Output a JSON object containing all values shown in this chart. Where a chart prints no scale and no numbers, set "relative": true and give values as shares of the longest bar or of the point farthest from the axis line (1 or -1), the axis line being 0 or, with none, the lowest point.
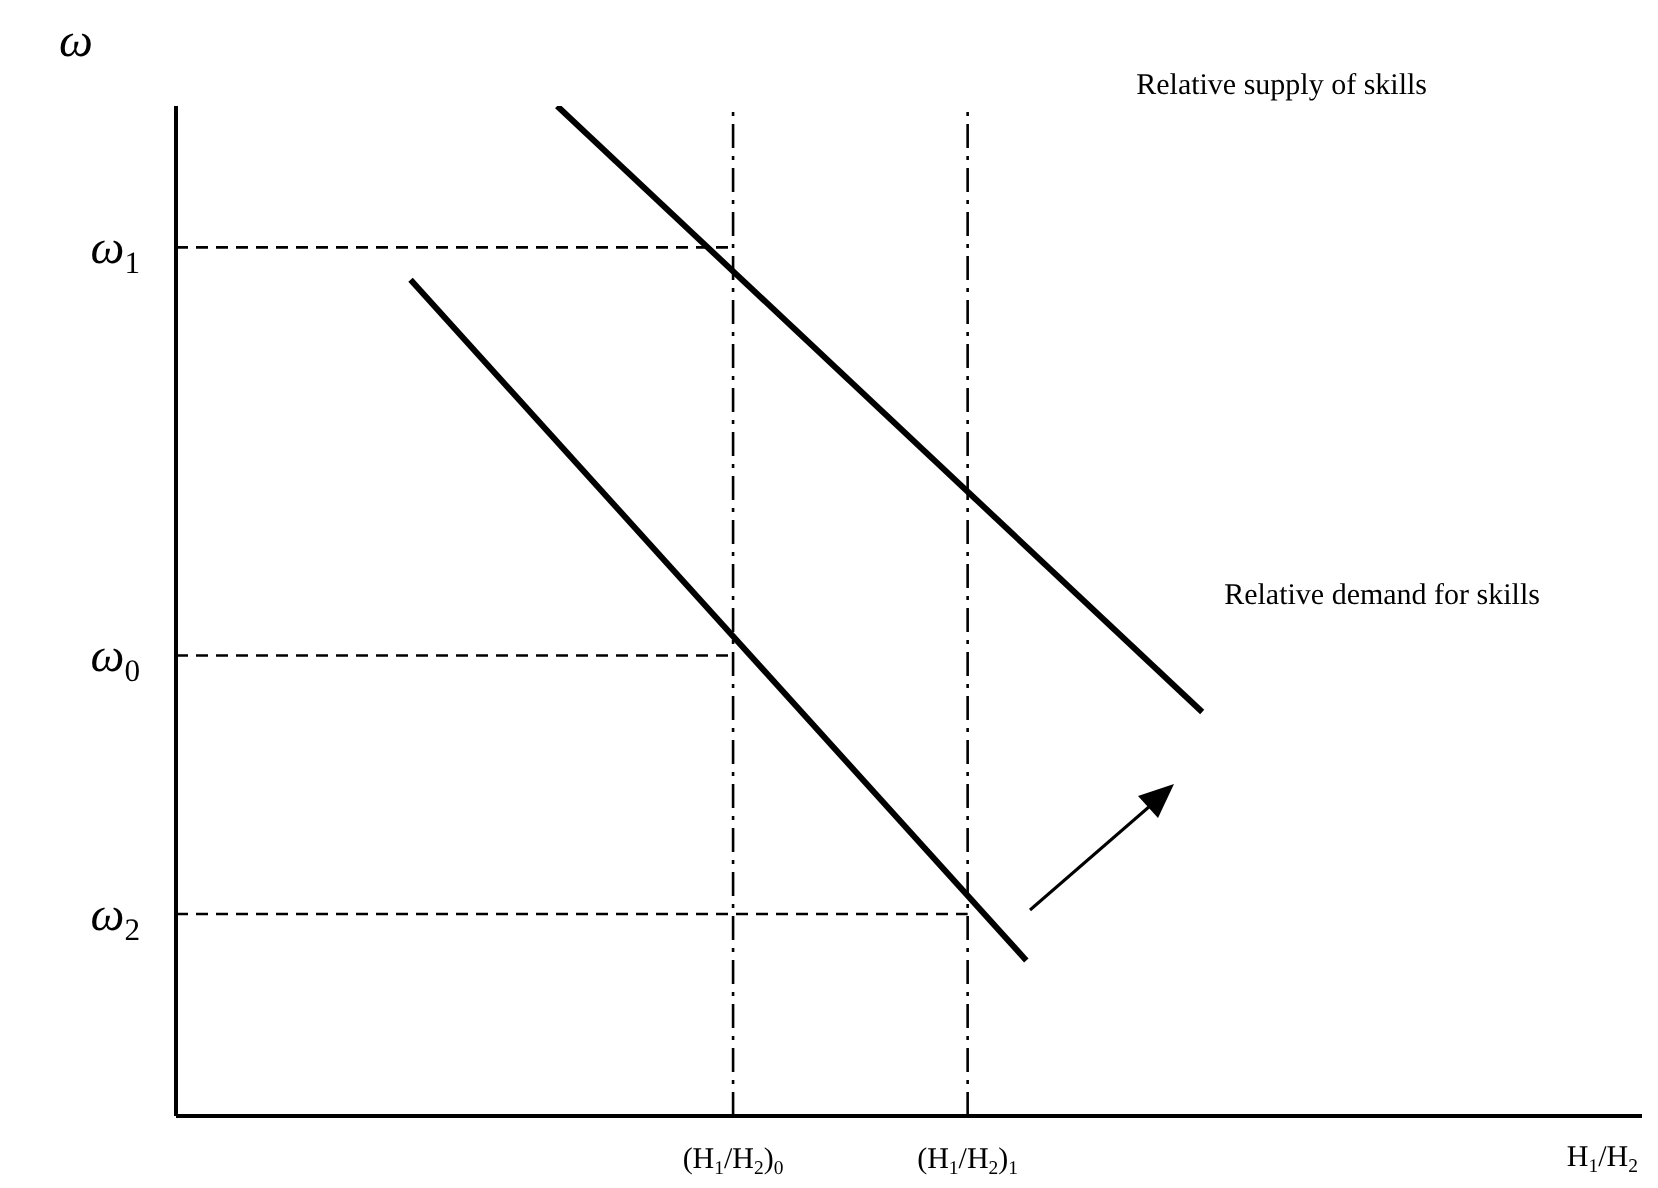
{
  "chart_data": {
    "type": "line",
    "relative": true,
    "ylabel": "ω",
    "xlabel": "H$_{1}$/H$_{2}$",
    "categories": [
      null,
      null,
      null,
      null,
      null,
      null,
      null,
      null,
      null,
      null,
      null,
      null,
      null,
      null,
      null,
      null,
      null,
      null,
      null,
      "(H$_{1}$/H$_{2}$)$_{0}$",
      null,
      null,
      null,
      null,
      null,
      null,
      null,
      "(H$_{1}$/H$_{2}$)$_{1}$",
      null,
      null,
      null,
      null,
      null,
      null,
      null,
      null,
      null,
      null,
      null,
      null,
      null,
      null,
      null,
      null,
      null,
      null,
      null,
      null,
      null,
      null,
      null
    ],
    "series": [
      {
        "color": "#000000",
        "line_style": "solid",
        "values": [
          null,
          null,
          null,
          null,
          null,
          null,
          null,
          null,
          null,
          null,
          null,
          null,
          null,
          1.0,
          null,
          null,
          null,
          null,
          null,
          null,
          null,
          null,
          null,
          null,
          null,
          null,
          null,
          null,
          null,
          null,
          null,
          null,
          null,
          null,
          null,
          0.4,
          null,
          null,
          null,
          null,
          null,
          null,
          null,
          null,
          null,
          null,
          null,
          null,
          null,
          null,
          null
        ]
      },
      {
        "color": "#000000",
        "line_style": "solid",
        "values": [
          null,
          null,
          null,
          null,
          null,
          null,
          null,
          null,
          0.828,
          null,
          null,
          null,
          null,
          null,
          null,
          null,
          null,
          null,
          null,
          null,
          null,
          null,
          null,
          null,
          null,
          null,
          null,
          null,
          null,
          0.154,
          null,
          null,
          null,
          null,
          null,
          null,
          null,
          null,
          null,
          null,
          null,
          null,
          null,
          null,
          null,
          null,
          null,
          null,
          null,
          null,
          null
        ]
      },
      {
        "name": "ω$_{1}$",
        "color": "#000000",
        "line_style": "dashed",
        "values": [
          0.86,
          null,
          null,
          null,
          null,
          null,
          null,
          null,
          null,
          null,
          null,
          null,
          null,
          null,
          null,
          null,
          null,
          null,
          null,
          0.86,
          null,
          null,
          null,
          null,
          null,
          null,
          null,
          null,
          null,
          null,
          null,
          null,
          null,
          null,
          null,
          null,
          null,
          null,
          null,
          null,
          null,
          null,
          null,
          null,
          null,
          null,
          null,
          null,
          null,
          null,
          null
        ]
      },
      {
        "name": "ω$_{0}$",
        "color": "#000000",
        "line_style": "dashed",
        "values": [
          0.456,
          null,
          null,
          null,
          null,
          null,
          null,
          null,
          null,
          null,
          null,
          null,
          null,
          null,
          null,
          null,
          null,
          null,
          null,
          0.456,
          null,
          null,
          null,
          null,
          null,
          null,
          null,
          null,
          null,
          null,
          null,
          null,
          null,
          null,
          null,
          null,
          null,
          null,
          null,
          null,
          null,
          null,
          null,
          null,
          null,
          null,
          null,
          null,
          null,
          null,
          null
        ]
      },
      {
        "name": "ω$_{2}$",
        "color": "#000000",
        "line_style": "dashed",
        "values": [
          0.2,
          null,
          null,
          null,
          null,
          null,
          null,
          null,
          null,
          null,
          null,
          null,
          null,
          null,
          null,
          null,
          null,
          null,
          null,
          null,
          null,
          null,
          null,
          null,
          null,
          null,
          null,
          0.2,
          null,
          null,
          null,
          null,
          null,
          null,
          null,
          null,
          null,
          null,
          null,
          null,
          null,
          null,
          null,
          null,
          null,
          null,
          null,
          null,
          null,
          null,
          null
        ]
      }
    ],
    "ref_lines": [
      {
        "axis": "x",
        "value": "(H$_{1}$/H$_{2}$)$_{0}$",
        "color": "#000000",
        "line_style": "dashed"
      },
      {
        "axis": "x",
        "value": "(H$_{1}$/H$_{2}$)$_{1}$",
        "color": "#000000",
        "line_style": "dashed"
      }
    ],
    "annotations": [
      "Relative supply of skills",
      "Relative demand for skills"
    ],
    "marker": "none",
    "grid": false,
    "legend": false
  }
}
